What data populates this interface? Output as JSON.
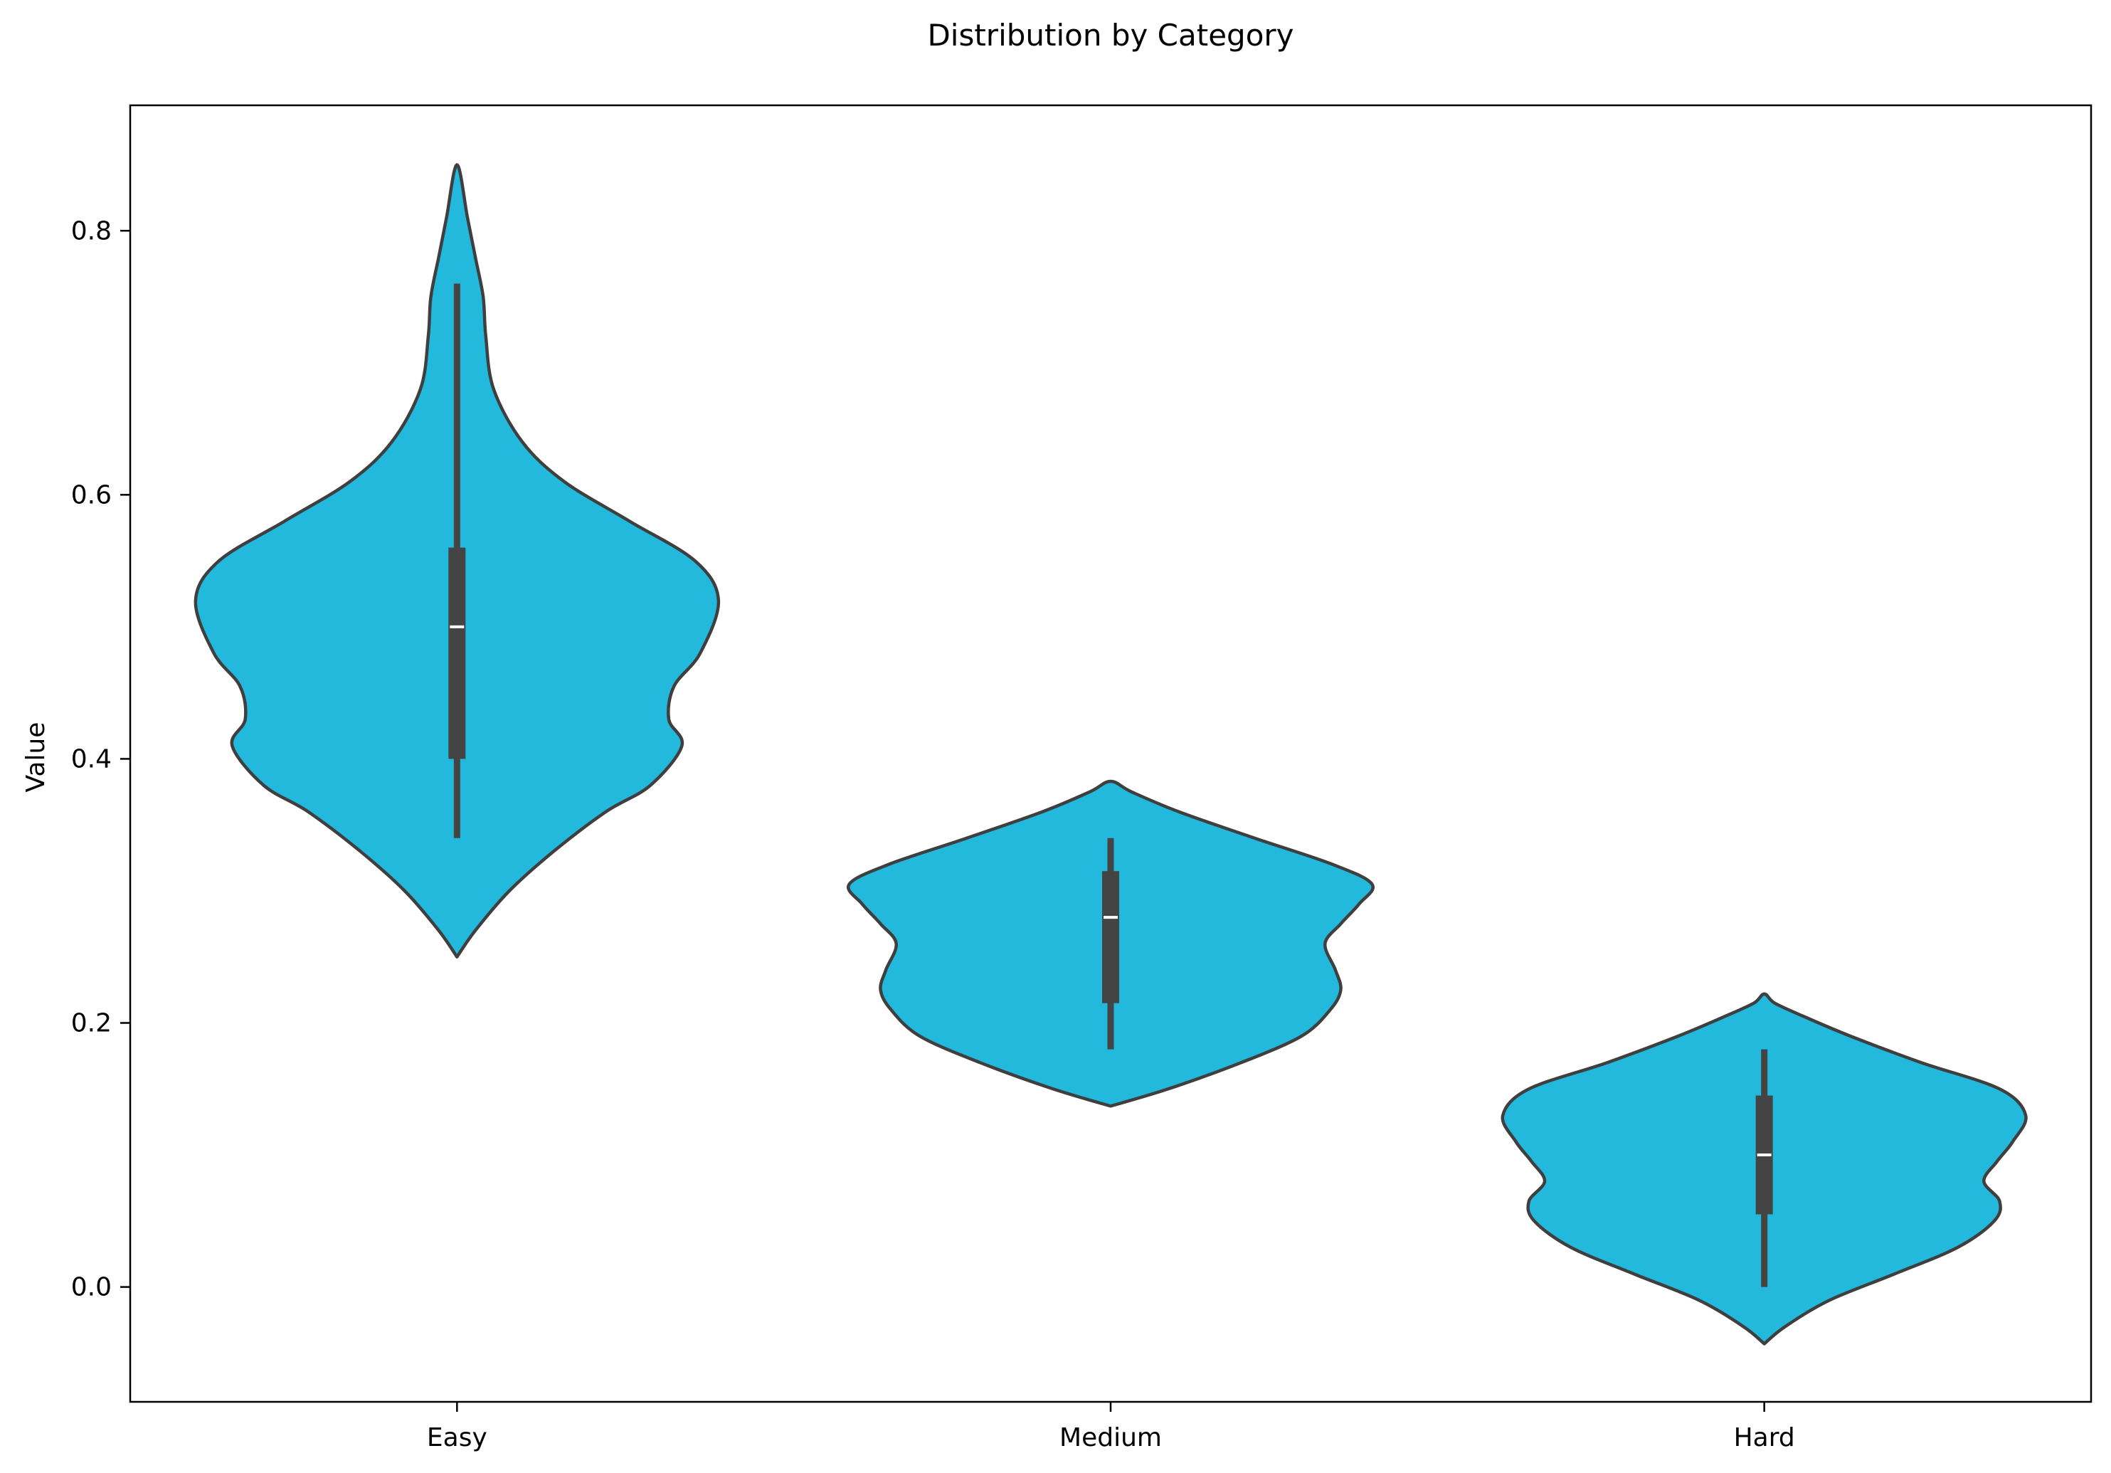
{
  "chart_data": {
    "type": "violin",
    "title": "Distribution by Category",
    "xlabel": "",
    "ylabel": "Value",
    "categories": [
      "Easy",
      "Medium",
      "Hard"
    ],
    "ylim": [
      -0.087,
      0.895
    ],
    "yticks": [
      0.0,
      0.2,
      0.4,
      0.6,
      0.8
    ],
    "ytick_labels": [
      "0.0",
      "0.2",
      "0.4",
      "0.6",
      "0.8"
    ],
    "grid": false,
    "legend": "none",
    "colors": {
      "violin_fill": "#22b9dd",
      "violin_edge": "#3f3f3f",
      "box": "#444444",
      "median": "#ffffff",
      "axis": "#000000"
    },
    "violins": [
      {
        "category": "Easy",
        "min": 0.34,
        "q1": 0.4,
        "median": 0.5,
        "q3": 0.56,
        "max": 0.76,
        "kde_range": [
          0.25,
          0.85
        ],
        "profile": [
          [
            0.25,
            0.0
          ],
          [
            0.27,
            0.07
          ],
          [
            0.3,
            0.2
          ],
          [
            0.33,
            0.37
          ],
          [
            0.36,
            0.57
          ],
          [
            0.38,
            0.74
          ],
          [
            0.41,
            0.86
          ],
          [
            0.43,
            0.81
          ],
          [
            0.455,
            0.83
          ],
          [
            0.48,
            0.93
          ],
          [
            0.52,
            1.0
          ],
          [
            0.55,
            0.91
          ],
          [
            0.58,
            0.66
          ],
          [
            0.61,
            0.41
          ],
          [
            0.64,
            0.25
          ],
          [
            0.68,
            0.14
          ],
          [
            0.72,
            0.11
          ],
          [
            0.75,
            0.1
          ],
          [
            0.78,
            0.07
          ],
          [
            0.81,
            0.04
          ],
          [
            0.85,
            0.0
          ]
        ]
      },
      {
        "category": "Medium",
        "min": 0.18,
        "q1": 0.215,
        "median": 0.28,
        "q3": 0.315,
        "max": 0.34,
        "kde_range": [
          0.137,
          0.383
        ],
        "profile": [
          [
            0.137,
            0.0
          ],
          [
            0.15,
            0.22
          ],
          [
            0.17,
            0.5
          ],
          [
            0.19,
            0.73
          ],
          [
            0.21,
            0.84
          ],
          [
            0.225,
            0.88
          ],
          [
            0.24,
            0.86
          ],
          [
            0.26,
            0.82
          ],
          [
            0.275,
            0.88
          ],
          [
            0.29,
            0.95
          ],
          [
            0.305,
            1.0
          ],
          [
            0.32,
            0.85
          ],
          [
            0.34,
            0.55
          ],
          [
            0.36,
            0.26
          ],
          [
            0.375,
            0.08
          ],
          [
            0.383,
            0.0
          ]
        ]
      },
      {
        "category": "Hard",
        "min": 0.0,
        "q1": 0.055,
        "median": 0.1,
        "q3": 0.145,
        "max": 0.18,
        "kde_range": [
          -0.043,
          0.222
        ],
        "profile": [
          [
            -0.043,
            0.0
          ],
          [
            -0.03,
            0.08
          ],
          [
            -0.01,
            0.25
          ],
          [
            0.01,
            0.5
          ],
          [
            0.03,
            0.74
          ],
          [
            0.05,
            0.88
          ],
          [
            0.065,
            0.9
          ],
          [
            0.08,
            0.84
          ],
          [
            0.095,
            0.89
          ],
          [
            0.11,
            0.95
          ],
          [
            0.13,
            1.0
          ],
          [
            0.15,
            0.9
          ],
          [
            0.17,
            0.6
          ],
          [
            0.19,
            0.33
          ],
          [
            0.205,
            0.15
          ],
          [
            0.215,
            0.04
          ],
          [
            0.222,
            0.0
          ]
        ]
      }
    ]
  }
}
